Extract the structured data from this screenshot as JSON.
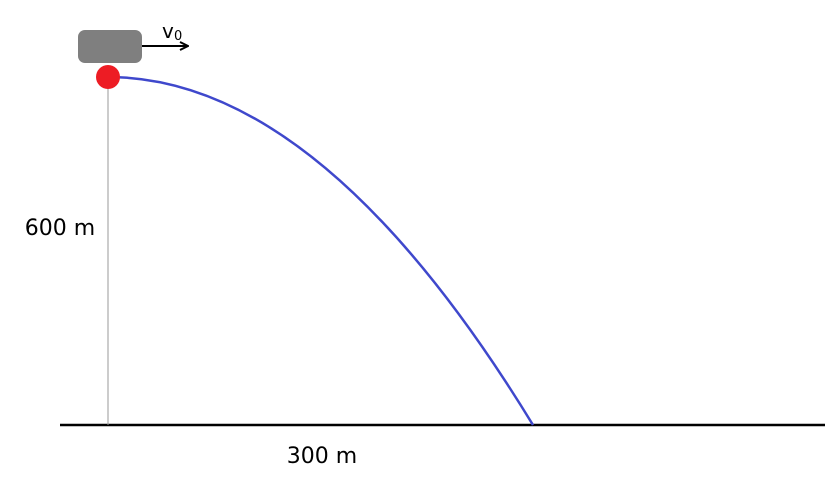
{
  "velocity_label": {
    "main": "v",
    "subscript": "0"
  },
  "height_label": "600 m",
  "distance_label": "300 m"
}
